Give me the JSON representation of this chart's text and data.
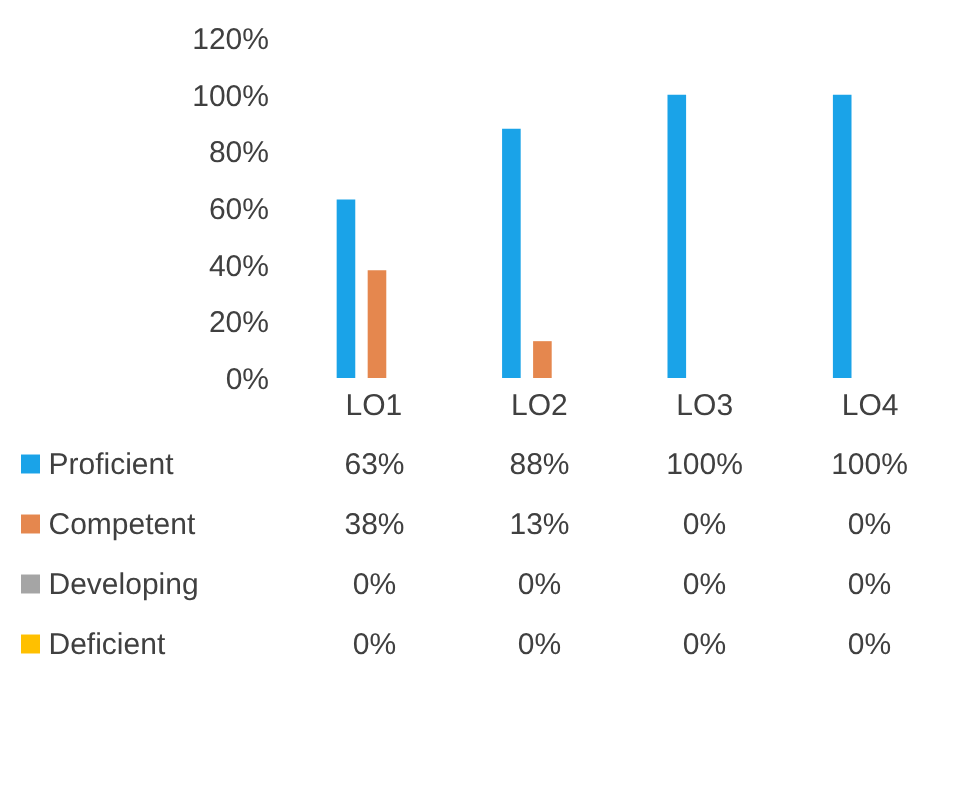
{
  "chart_data": {
    "type": "bar",
    "categories": [
      "LO1",
      "LO2",
      "LO3",
      "LO4"
    ],
    "series": [
      {
        "name": "Proficient",
        "color": "#1aa3e8",
        "values": [
          63,
          88,
          100,
          100
        ],
        "value_labels": [
          "63%",
          "88%",
          "100%",
          "100%"
        ]
      },
      {
        "name": "Competent",
        "color": "#e5874e",
        "values": [
          38,
          13,
          0,
          0
        ],
        "value_labels": [
          "38%",
          "13%",
          "0%",
          "0%"
        ]
      },
      {
        "name": "Developing",
        "color": "#a5a5a5",
        "values": [
          0,
          0,
          0,
          0
        ],
        "value_labels": [
          "0%",
          "0%",
          "0%",
          "0%"
        ]
      },
      {
        "name": "Deficient",
        "color": "#ffc000",
        "values": [
          0,
          0,
          0,
          0
        ],
        "value_labels": [
          "0%",
          "0%",
          "0%",
          "0%"
        ]
      }
    ],
    "ylim": [
      0,
      120
    ],
    "yticks": [
      {
        "value": 0,
        "label": "0%"
      },
      {
        "value": 20,
        "label": "20%"
      },
      {
        "value": 40,
        "label": "40%"
      },
      {
        "value": 60,
        "label": "60%"
      },
      {
        "value": 80,
        "label": "80%"
      },
      {
        "value": 100,
        "label": "100%"
      },
      {
        "value": 120,
        "label": "120%"
      }
    ],
    "legend": "bottom"
  }
}
